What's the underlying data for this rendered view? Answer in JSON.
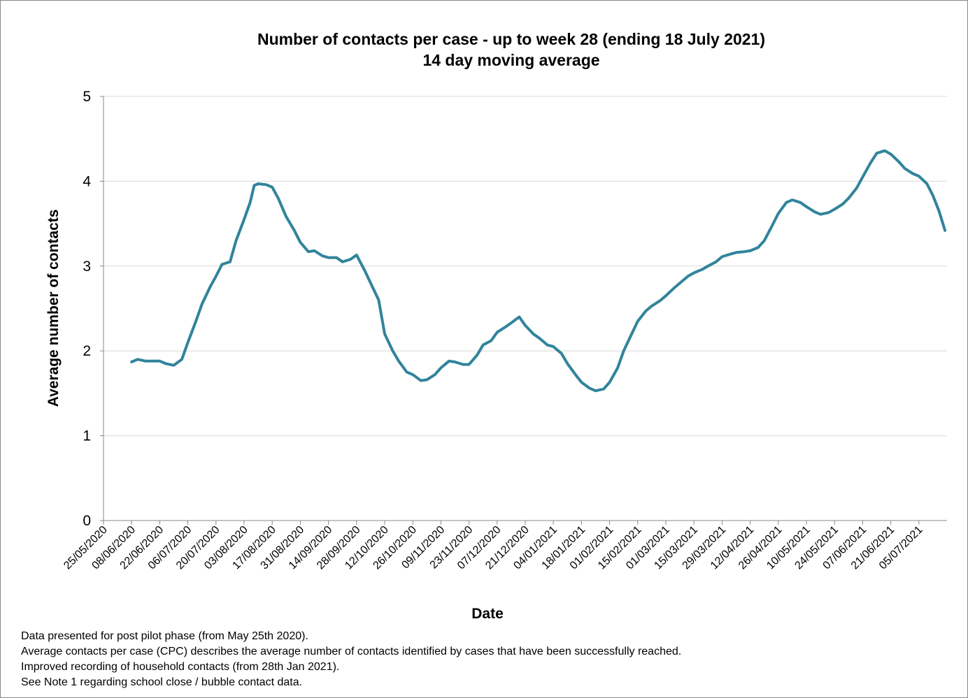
{
  "chart_data": {
    "type": "line",
    "title": "Number of contacts per case - up to week 28 (ending 18 July 2021)",
    "subtitle": "14 day moving average",
    "y_label": "Average number of contacts",
    "x_label": "Date",
    "color": "#31849b",
    "grid": true,
    "ylim": [
      0,
      5
    ],
    "yticks": [
      0,
      1,
      2,
      3,
      4,
      5
    ],
    "xlim": [
      "25/05/2020",
      "18/07/2021"
    ],
    "xticks": [
      "25/05/2020",
      "08/06/2020",
      "22/06/2020",
      "06/07/2020",
      "20/07/2020",
      "03/08/2020",
      "17/08/2020",
      "31/08/2020",
      "14/09/2020",
      "28/09/2020",
      "12/10/2020",
      "26/10/2020",
      "09/11/2020",
      "23/11/2020",
      "07/12/2020",
      "21/12/2020",
      "04/01/2021",
      "18/01/2021",
      "01/02/2021",
      "15/02/2021",
      "01/03/2021",
      "15/03/2021",
      "29/03/2021",
      "12/04/2021",
      "26/04/2021",
      "10/05/2021",
      "24/05/2021",
      "07/06/2021",
      "21/06/2021",
      "05/07/2021"
    ],
    "x": [
      "08/06/2020",
      "11/06/2020",
      "15/06/2020",
      "22/06/2020",
      "25/06/2020",
      "29/06/2020",
      "03/07/2020",
      "06/07/2020",
      "10/07/2020",
      "13/07/2020",
      "17/07/2020",
      "20/07/2020",
      "23/07/2020",
      "27/07/2020",
      "30/07/2020",
      "03/08/2020",
      "06/08/2020",
      "08/08/2020",
      "10/08/2020",
      "14/08/2020",
      "17/08/2020",
      "20/08/2020",
      "24/08/2020",
      "28/08/2020",
      "31/08/2020",
      "04/09/2020",
      "07/09/2020",
      "11/09/2020",
      "14/09/2020",
      "18/09/2020",
      "21/09/2020",
      "25/09/2020",
      "28/09/2020",
      "02/10/2020",
      "05/10/2020",
      "09/10/2020",
      "12/10/2020",
      "16/10/2020",
      "19/10/2020",
      "23/10/2020",
      "26/10/2020",
      "30/10/2020",
      "02/11/2020",
      "06/11/2020",
      "09/11/2020",
      "13/11/2020",
      "16/11/2020",
      "20/11/2020",
      "23/11/2020",
      "27/11/2020",
      "30/11/2020",
      "04/12/2020",
      "07/12/2020",
      "11/12/2020",
      "14/12/2020",
      "18/12/2020",
      "21/12/2020",
      "25/12/2020",
      "28/12/2020",
      "01/01/2021",
      "04/01/2021",
      "08/01/2021",
      "11/01/2021",
      "15/01/2021",
      "18/01/2021",
      "22/01/2021",
      "25/01/2021",
      "29/01/2021",
      "01/02/2021",
      "05/02/2021",
      "08/02/2021",
      "12/02/2021",
      "15/02/2021",
      "19/02/2021",
      "22/02/2021",
      "26/02/2021",
      "01/03/2021",
      "05/03/2021",
      "08/03/2021",
      "12/03/2021",
      "15/03/2021",
      "19/03/2021",
      "22/03/2021",
      "26/03/2021",
      "29/03/2021",
      "02/04/2021",
      "05/04/2021",
      "09/04/2021",
      "12/04/2021",
      "16/04/2021",
      "19/04/2021",
      "23/04/2021",
      "26/04/2021",
      "30/04/2021",
      "03/05/2021",
      "07/05/2021",
      "10/05/2021",
      "14/05/2021",
      "17/05/2021",
      "21/05/2021",
      "24/05/2021",
      "28/05/2021",
      "31/05/2021",
      "04/06/2021",
      "07/06/2021",
      "11/06/2021",
      "14/06/2021",
      "18/06/2021",
      "21/06/2021",
      "25/06/2021",
      "28/06/2021",
      "02/07/2021",
      "05/07/2021",
      "09/07/2021",
      "12/07/2021",
      "15/07/2021",
      "18/07/2021"
    ],
    "values": [
      1.87,
      1.9,
      1.88,
      1.88,
      1.85,
      1.83,
      1.9,
      2.1,
      2.35,
      2.55,
      2.75,
      2.88,
      3.02,
      3.05,
      3.3,
      3.55,
      3.75,
      3.95,
      3.97,
      3.96,
      3.93,
      3.8,
      3.58,
      3.42,
      3.28,
      3.17,
      3.18,
      3.12,
      3.1,
      3.1,
      3.05,
      3.08,
      3.13,
      2.95,
      2.8,
      2.6,
      2.2,
      2.0,
      1.88,
      1.75,
      1.72,
      1.65,
      1.66,
      1.72,
      1.8,
      1.88,
      1.87,
      1.84,
      1.84,
      1.95,
      2.07,
      2.12,
      2.22,
      2.28,
      2.33,
      2.4,
      2.3,
      2.2,
      2.15,
      2.07,
      2.05,
      1.97,
      1.85,
      1.72,
      1.63,
      1.56,
      1.53,
      1.55,
      1.63,
      1.8,
      2.0,
      2.2,
      2.35,
      2.47,
      2.53,
      2.59,
      2.65,
      2.74,
      2.8,
      2.88,
      2.92,
      2.96,
      3.0,
      3.05,
      3.11,
      3.14,
      3.16,
      3.17,
      3.18,
      3.22,
      3.3,
      3.48,
      3.62,
      3.75,
      3.78,
      3.75,
      3.7,
      3.64,
      3.61,
      3.63,
      3.67,
      3.73,
      3.8,
      3.92,
      4.05,
      4.22,
      4.33,
      4.36,
      4.32,
      4.23,
      4.15,
      4.09,
      4.06,
      3.97,
      3.83,
      3.65,
      3.42
    ],
    "notes": [
      "Data presented  for post pilot phase (from May 25th 2020).",
      "Average contacts per case (CPC) describes the average number of contacts identified by cases that have been successfully reached.",
      "Improved recording of household contacts (from 28th Jan 2021).",
      "See Note 1 regarding school close / bubble contact data."
    ]
  }
}
